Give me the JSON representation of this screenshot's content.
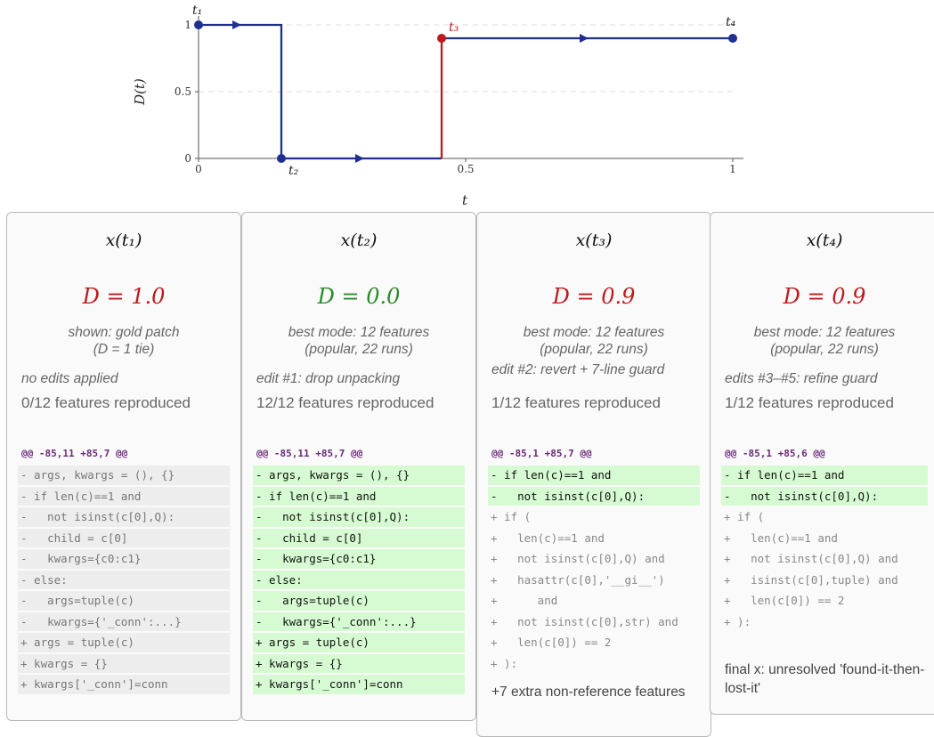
{
  "chart_data": {
    "type": "line",
    "ylabel": "D(t)",
    "xlabel": "t",
    "xlim": [
      0,
      1
    ],
    "ylim": [
      0,
      1
    ],
    "x_ticks": [
      "0",
      "0.5",
      "1"
    ],
    "y_ticks": [
      "0",
      "0.5",
      "1"
    ],
    "grid": "horizontal dashed at 0.5 and 1",
    "series": [
      {
        "color": "#1f2f8f",
        "points": [
          [
            0,
            1
          ],
          [
            0.155,
            1
          ],
          [
            0.155,
            0
          ],
          [
            0.455,
            0
          ]
        ]
      },
      {
        "color": "#c0191d",
        "points": [
          [
            0.455,
            0
          ],
          [
            0.455,
            0.9
          ]
        ]
      },
      {
        "color": "#1f2f8f",
        "points": [
          [
            0.455,
            0.9
          ],
          [
            1,
            0.9
          ]
        ]
      }
    ],
    "markers": [
      {
        "label": "t₁",
        "x": 0,
        "y": 1,
        "color": "#1f2f8f"
      },
      {
        "label": "t₂",
        "x": 0.155,
        "y": 0,
        "color": "#1f2f8f"
      },
      {
        "label": "t₃",
        "x": 0.455,
        "y": 0.9,
        "color": "#c0191d"
      },
      {
        "label": "t₄",
        "x": 1,
        "y": 0.9,
        "color": "#1f2f8f"
      }
    ]
  },
  "panels": [
    {
      "title": "x(t₁)",
      "score": "D = 1.0",
      "score_color": "#c0191d",
      "mode_line1": "shown: gold patch",
      "mode_line2": "(D = 1 tie)",
      "edit": "no edits applied",
      "features": "0/12 features reproduced",
      "hunk": "@@ -85,11 +85,7 @@",
      "diff": [
        {
          "text": "- args, kwargs = (), {}",
          "hl": false
        },
        {
          "text": "- if len(c)==1 and",
          "hl": false
        },
        {
          "text": "-   not isinst(c[0],Q):",
          "hl": false
        },
        {
          "text": "-   child = c[0]",
          "hl": false
        },
        {
          "text": "-   kwargs={c0:c1}",
          "hl": false
        },
        {
          "text": "- else:",
          "hl": false
        },
        {
          "text": "-   args=tuple(c)",
          "hl": false
        },
        {
          "text": "-   kwargs={'_conn':...}",
          "hl": false
        },
        {
          "text": "+ args = tuple(c)",
          "hl": false
        },
        {
          "text": "+ kwargs = {}",
          "hl": false
        },
        {
          "text": "+ kwargs['_conn']=conn",
          "hl": false
        }
      ],
      "note": ""
    },
    {
      "title": "x(t₂)",
      "score": "D = 0.0",
      "score_color": "#2a8a2a",
      "mode_line1": "best mode: 12 features",
      "mode_line2": "(popular, 22 runs)",
      "edit": "edit #1: drop unpacking",
      "features": "12/12 features reproduced",
      "hunk": "@@ -85,11 +85,7 @@",
      "diff": [
        {
          "text": "- args, kwargs = (), {}",
          "hl": true
        },
        {
          "text": "- if len(c)==1 and",
          "hl": true
        },
        {
          "text": "-   not isinst(c[0],Q):",
          "hl": true
        },
        {
          "text": "-   child = c[0]",
          "hl": true
        },
        {
          "text": "-   kwargs={c0:c1}",
          "hl": true
        },
        {
          "text": "- else:",
          "hl": true
        },
        {
          "text": "-   args=tuple(c)",
          "hl": true
        },
        {
          "text": "-   kwargs={'_conn':...}",
          "hl": true
        },
        {
          "text": "+ args = tuple(c)",
          "hl": true
        },
        {
          "text": "+ kwargs = {}",
          "hl": true
        },
        {
          "text": "+ kwargs['_conn']=conn",
          "hl": true
        }
      ],
      "note": ""
    },
    {
      "title": "x(t₃)",
      "score": "D = 0.9",
      "score_color": "#c0191d",
      "mode_line1": "best mode: 12 features",
      "mode_line2": "(popular, 22 runs)",
      "edit": "edit #2: revert + 7-line guard",
      "features": "1/12 features reproduced",
      "hunk": "@@ -85,1 +85,7 @@",
      "diff": [
        {
          "text": "- if len(c)==1 and",
          "hl": true
        },
        {
          "text": "-   not isinst(c[0],Q):",
          "hl": true
        },
        {
          "text": "+ if (",
          "hl": false
        },
        {
          "text": "+   len(c)==1 and",
          "hl": false
        },
        {
          "text": "+   not isinst(c[0],Q) and",
          "hl": false
        },
        {
          "text": "+   hasattr(c[0],'__gi__')",
          "hl": false
        },
        {
          "text": "+      and",
          "hl": false
        },
        {
          "text": "+   not isinst(c[0],str) and",
          "hl": false
        },
        {
          "text": "+   len(c[0]) == 2",
          "hl": false
        },
        {
          "text": "+ ):",
          "hl": false
        }
      ],
      "note": "+7 extra non-reference features"
    },
    {
      "title": "x(t₄)",
      "score": "D = 0.9",
      "score_color": "#c0191d",
      "mode_line1": "best mode: 12 features",
      "mode_line2": "(popular, 22 runs)",
      "edit": "edits #3–#5: refine guard",
      "features": "1/12 features reproduced",
      "hunk": "@@ -85,1 +85,6 @@",
      "diff": [
        {
          "text": "- if len(c)==1 and",
          "hl": true
        },
        {
          "text": "-   not isinst(c[0],Q):",
          "hl": true
        },
        {
          "text": "+ if (",
          "hl": false
        },
        {
          "text": "+   len(c)==1 and",
          "hl": false
        },
        {
          "text": "+   not isinst(c[0],Q) and",
          "hl": false
        },
        {
          "text": "+   isinst(c[0],tuple) and",
          "hl": false
        },
        {
          "text": "+   len(c[0]) == 2",
          "hl": false
        },
        {
          "text": "+ ):",
          "hl": false
        }
      ],
      "note": "final x: unresolved 'found-it-then-lost-it'"
    }
  ]
}
